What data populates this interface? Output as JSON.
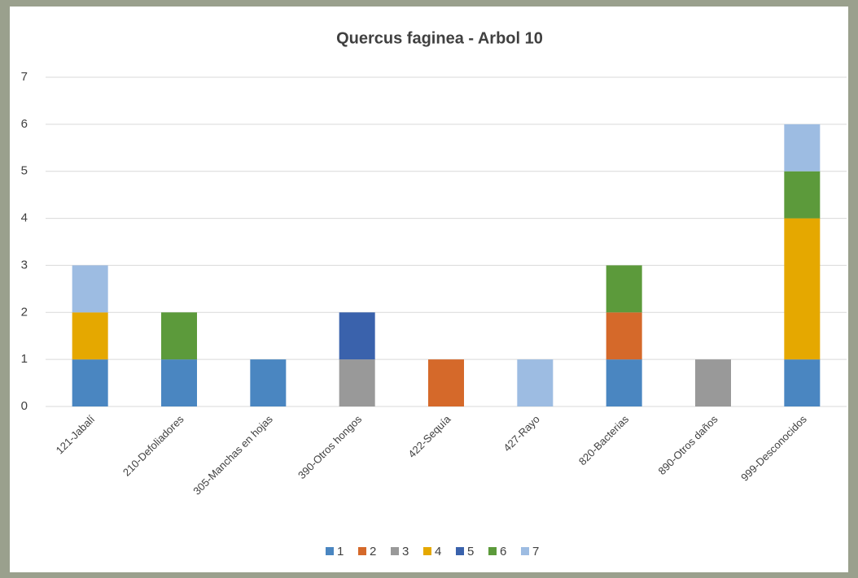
{
  "chart_data": {
    "type": "stacked_bar",
    "title": "Quercus faginea - Arbol 10",
    "categories": [
      "121-Jabalí",
      "210-Defoliadores",
      "305-Manchas en hojas",
      "390-Otros hongos",
      "422-Sequía",
      "427-Rayo",
      "820-Bacterias",
      "890-Otros daños",
      "999-Desconocidos"
    ],
    "series": [
      {
        "name": "1",
        "color": "#4a86c1",
        "values": [
          1,
          1,
          1,
          0,
          0,
          0,
          1,
          0,
          1
        ]
      },
      {
        "name": "2",
        "color": "#d5692a",
        "values": [
          0,
          0,
          0,
          0,
          1,
          0,
          1,
          0,
          0
        ]
      },
      {
        "name": "3",
        "color": "#999999",
        "values": [
          0,
          0,
          0,
          1,
          0,
          0,
          0,
          1,
          0
        ]
      },
      {
        "name": "4",
        "color": "#e5a800",
        "values": [
          1,
          0,
          0,
          0,
          0,
          0,
          0,
          0,
          3
        ]
      },
      {
        "name": "5",
        "color": "#3a62ac",
        "values": [
          0,
          0,
          0,
          1,
          0,
          0,
          0,
          0,
          0
        ]
      },
      {
        "name": "6",
        "color": "#5c9a3b",
        "values": [
          0,
          1,
          0,
          0,
          0,
          0,
          1,
          0,
          1
        ]
      },
      {
        "name": "7",
        "color": "#9dbce2",
        "values": [
          1,
          0,
          0,
          0,
          0,
          1,
          0,
          0,
          1
        ]
      }
    ],
    "ylim": [
      0,
      7
    ],
    "yticks": [
      0,
      1,
      2,
      3,
      4,
      5,
      6,
      7
    ],
    "grid": true,
    "legend": "bottom"
  }
}
